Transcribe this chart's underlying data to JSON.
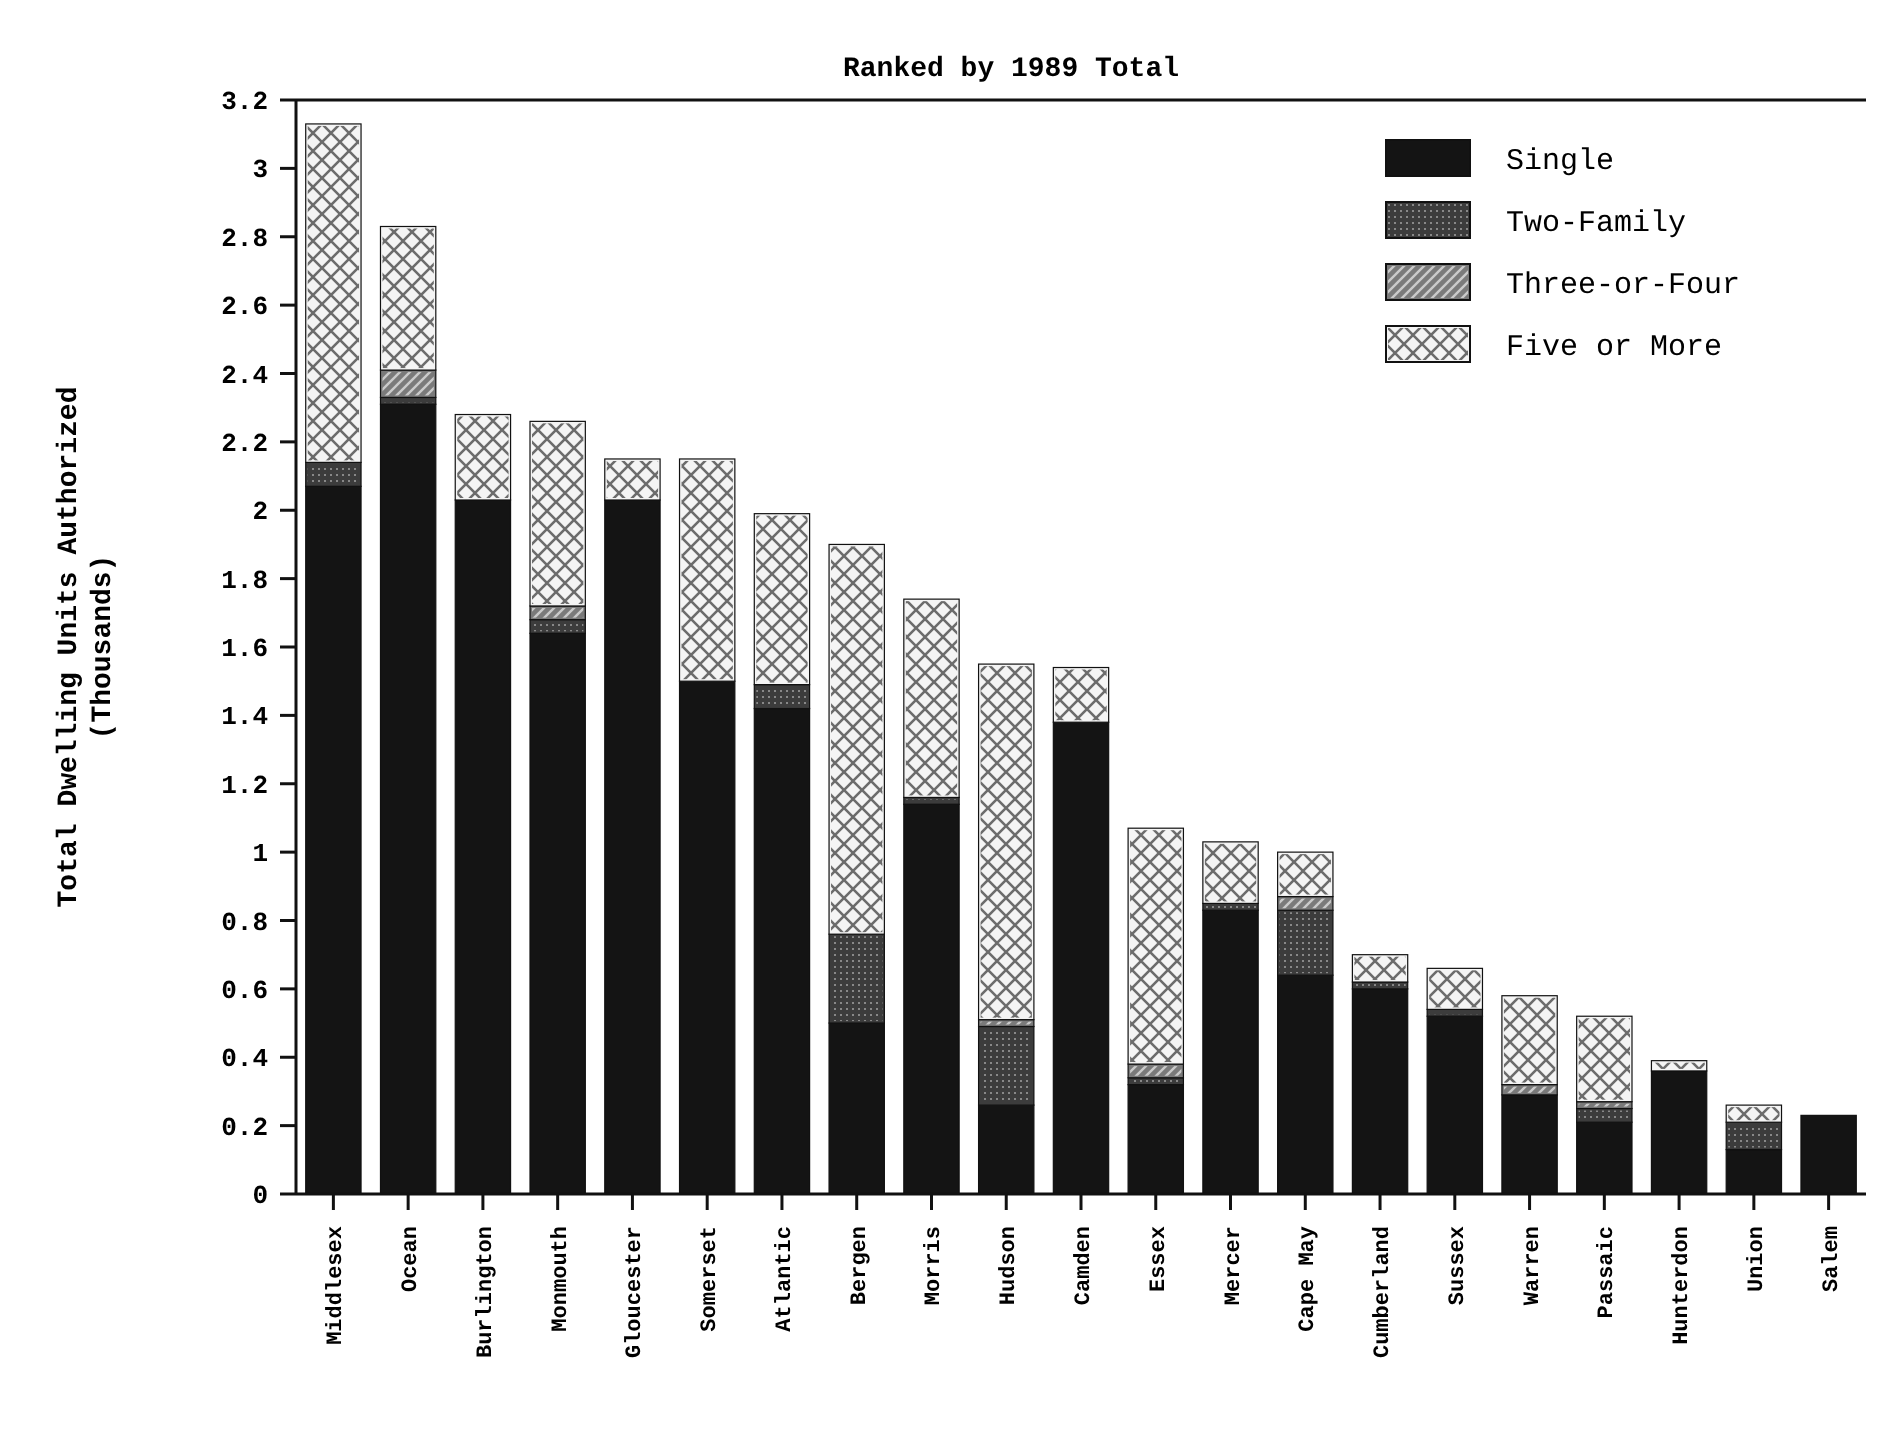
{
  "chart_data": {
    "type": "bar",
    "stacked": true,
    "title": "Ranked by 1989 Total",
    "ylabel": "Total Dwelling Units Authorized\n(Thousands)",
    "categories": [
      "Middlesex",
      "Ocean",
      "Burlington",
      "Monmouth",
      "Gloucester",
      "Somerset",
      "Atlantic",
      "Bergen",
      "Morris",
      "Hudson",
      "Camden",
      "Essex",
      "Mercer",
      "Cape May",
      "Cumberland",
      "Sussex",
      "Warren",
      "Passaic",
      "Hunterdon",
      "Union",
      "Salem"
    ],
    "series": [
      {
        "name": "Single",
        "color": "#141414",
        "values": [
          2.07,
          2.31,
          2.03,
          1.64,
          2.03,
          1.5,
          1.42,
          0.5,
          1.14,
          0.26,
          1.38,
          0.32,
          0.83,
          0.64,
          0.6,
          0.52,
          0.29,
          0.21,
          0.36,
          0.13,
          0.23
        ]
      },
      {
        "name": "Two-Family",
        "color": "#3c3c3c",
        "values": [
          0.07,
          0.02,
          0,
          0.04,
          0,
          0,
          0.07,
          0.26,
          0.02,
          0.23,
          0,
          0.02,
          0.02,
          0.19,
          0.02,
          0.02,
          0,
          0.04,
          0,
          0.08,
          0
        ]
      },
      {
        "name": "Three-or-Four",
        "color": "#7a7a7a",
        "values": [
          0,
          0.08,
          0,
          0.04,
          0,
          0,
          0,
          0,
          0,
          0.02,
          0,
          0.04,
          0,
          0.04,
          0,
          0,
          0.03,
          0.02,
          0,
          0,
          0
        ]
      },
      {
        "name": "Five or More",
        "color": "#f4f4f4",
        "values": [
          0.99,
          0.42,
          0.25,
          0.54,
          0.12,
          0.65,
          0.5,
          1.14,
          0.58,
          1.04,
          0.16,
          0.69,
          0.18,
          0.13,
          0.08,
          0.12,
          0.26,
          0.25,
          0.03,
          0.05,
          0
        ]
      }
    ],
    "ylim": [
      0,
      3.2
    ],
    "yticks": [
      0,
      {
        "value": 0.2,
        "label": "0.2"
      },
      {
        "value": 0.4,
        "label": "0.4"
      },
      {
        "value": 0.6,
        "label": "0.6"
      },
      {
        "value": 0.8,
        "label": "0.8"
      },
      1,
      {
        "value": 1.2,
        "label": "1.2"
      },
      {
        "value": 1.4,
        "label": "1.4"
      },
      {
        "value": 1.6,
        "label": "1.6"
      },
      {
        "value": 1.8,
        "label": "1.8"
      },
      2,
      {
        "value": 2.2,
        "label": "2.2"
      },
      {
        "value": 2.4,
        "label": "2.4"
      },
      {
        "value": 2.6,
        "label": "2.6"
      },
      {
        "value": 2.8,
        "label": "2.8"
      },
      3,
      {
        "value": 3.2,
        "label": "3.2"
      }
    ],
    "legend": "top right",
    "grid": false
  }
}
